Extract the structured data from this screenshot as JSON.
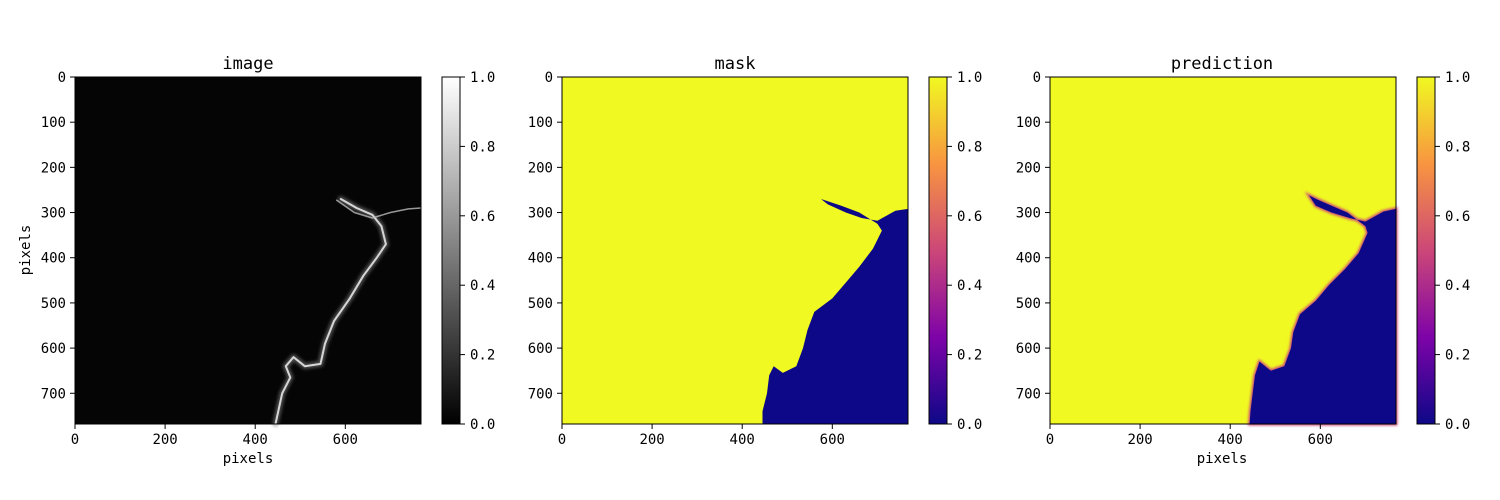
{
  "chart_data": [
    {
      "type": "heatmap",
      "title": "image",
      "xlabel": "pixels",
      "ylabel": "pixels",
      "image_size": [
        768,
        768
      ],
      "xlim": [
        0,
        768
      ],
      "ylim": [
        768,
        0
      ],
      "xticks": [
        0,
        200,
        400,
        600
      ],
      "yticks": [
        0,
        100,
        200,
        300,
        400,
        500,
        600,
        700
      ],
      "colormap": "gray",
      "colorbar": {
        "range": [
          0.0,
          1.0
        ],
        "ticks": [
          "0.0",
          "0.2",
          "0.4",
          "0.6",
          "0.8",
          "1.0"
        ]
      },
      "region_boundary": [
        [
          580,
          272
        ],
        [
          620,
          300
        ],
        [
          660,
          312
        ],
        [
          700,
          300
        ],
        [
          740,
          292
        ],
        [
          768,
          290
        ]
      ],
      "highlight_path": [
        [
          590,
          270
        ],
        [
          625,
          290
        ],
        [
          660,
          305
        ],
        [
          680,
          330
        ],
        [
          690,
          370
        ],
        [
          670,
          400
        ],
        [
          640,
          440
        ],
        [
          610,
          490
        ],
        [
          575,
          540
        ],
        [
          555,
          590
        ],
        [
          545,
          635
        ],
        [
          510,
          640
        ],
        [
          485,
          620
        ],
        [
          468,
          640
        ],
        [
          478,
          665
        ],
        [
          460,
          700
        ],
        [
          445,
          768
        ]
      ]
    },
    {
      "type": "heatmap",
      "title": "mask",
      "xlabel": "",
      "ylabel": "",
      "image_size": [
        768,
        768
      ],
      "xlim": [
        0,
        768
      ],
      "ylim": [
        768,
        0
      ],
      "xticks": [
        0,
        200,
        400,
        600
      ],
      "yticks": [
        0,
        100,
        200,
        300,
        400,
        500,
        600,
        700
      ],
      "colormap": "plasma",
      "value_inside": 1.0,
      "value_region": 0.0,
      "colorbar": {
        "range": [
          0.0,
          1.0
        ],
        "ticks": [
          "0.0",
          "0.2",
          "0.4",
          "0.6",
          "0.8",
          "1.0"
        ]
      },
      "region_boundary": [
        [
          768,
          292
        ],
        [
          740,
          296
        ],
        [
          700,
          318
        ],
        [
          665,
          312
        ],
        [
          630,
          300
        ],
        [
          590,
          282
        ],
        [
          575,
          270
        ],
        [
          590,
          275
        ],
        [
          620,
          285
        ],
        [
          660,
          300
        ],
        [
          700,
          325
        ],
        [
          710,
          340
        ],
        [
          690,
          380
        ],
        [
          660,
          420
        ],
        [
          630,
          455
        ],
        [
          600,
          490
        ],
        [
          560,
          520
        ],
        [
          545,
          560
        ],
        [
          535,
          600
        ],
        [
          520,
          640
        ],
        [
          490,
          655
        ],
        [
          470,
          640
        ],
        [
          460,
          660
        ],
        [
          455,
          700
        ],
        [
          445,
          740
        ],
        [
          445,
          768
        ]
      ]
    },
    {
      "type": "heatmap",
      "title": "prediction",
      "xlabel": "pixels",
      "ylabel": "",
      "image_size": [
        768,
        768
      ],
      "xlim": [
        0,
        768
      ],
      "ylim": [
        768,
        0
      ],
      "xticks": [
        0,
        200,
        400,
        600
      ],
      "yticks": [
        0,
        100,
        200,
        300,
        400,
        500,
        600,
        700
      ],
      "colormap": "plasma",
      "value_inside": 1.0,
      "value_region": 0.0,
      "colorbar": {
        "range": [
          0.0,
          1.0
        ],
        "ticks": [
          "0.0",
          "0.2",
          "0.4",
          "0.6",
          "0.8",
          "1.0"
        ]
      },
      "region_boundary": [
        [
          768,
          292
        ],
        [
          740,
          298
        ],
        [
          700,
          320
        ],
        [
          665,
          312
        ],
        [
          625,
          300
        ],
        [
          590,
          285
        ],
        [
          575,
          262
        ],
        [
          595,
          272
        ],
        [
          625,
          285
        ],
        [
          660,
          300
        ],
        [
          700,
          330
        ],
        [
          705,
          345
        ],
        [
          685,
          390
        ],
        [
          655,
          425
        ],
        [
          620,
          460
        ],
        [
          590,
          495
        ],
        [
          555,
          525
        ],
        [
          540,
          565
        ],
        [
          535,
          600
        ],
        [
          520,
          640
        ],
        [
          490,
          650
        ],
        [
          465,
          630
        ],
        [
          455,
          660
        ],
        [
          450,
          700
        ],
        [
          445,
          740
        ],
        [
          443,
          768
        ]
      ]
    }
  ]
}
